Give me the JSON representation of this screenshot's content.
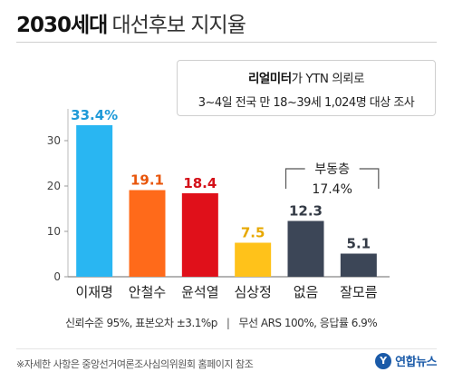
{
  "header": {
    "title_main": "2030세대",
    "title_sub": "대선후보 지지율"
  },
  "survey": {
    "org": "리얼미터",
    "line1_rest": "가 YTN 의뢰로",
    "line2": "3~4일 전국 만 18~39세 1,024명 대상 조사"
  },
  "chart_data": {
    "type": "bar",
    "categories": [
      "이재명",
      "안철수",
      "윤석열",
      "심상정",
      "없음",
      "잘모름"
    ],
    "values": [
      33.4,
      19.1,
      18.4,
      7.5,
      12.3,
      5.1
    ],
    "value_labels": [
      "33.4%",
      "19.1",
      "18.4",
      "7.5",
      "12.3",
      "5.1"
    ],
    "colors": [
      "#29b6f2",
      "#ff6a1a",
      "#e0101a",
      "#ffc21a",
      "#3c4657",
      "#3c4657"
    ],
    "label_colors": [
      "#1e9ad8",
      "#e8550a",
      "#d40f18",
      "#e7a800",
      "#333a45",
      "#333a45"
    ],
    "ylim": [
      0,
      35
    ],
    "yticks": [
      0,
      10,
      20,
      30
    ],
    "annotation": {
      "label": "부동층",
      "value": "17.4%",
      "spans": [
        "없음",
        "잘모름"
      ]
    },
    "title": "",
    "xlabel": "",
    "ylabel": "",
    "grid": false
  },
  "footnotes": {
    "stats_left": "신뢰수준 95%, 표본오차 ±3.1%p",
    "separator": "|",
    "stats_right": "무선 ARS 100%, 응답률 6.9%",
    "source_note": "※자세한 사항은 중앙선거여론조사심의위원회 홈페이지 참조"
  },
  "logo": {
    "text": "연합뉴스",
    "mark": "Y"
  }
}
